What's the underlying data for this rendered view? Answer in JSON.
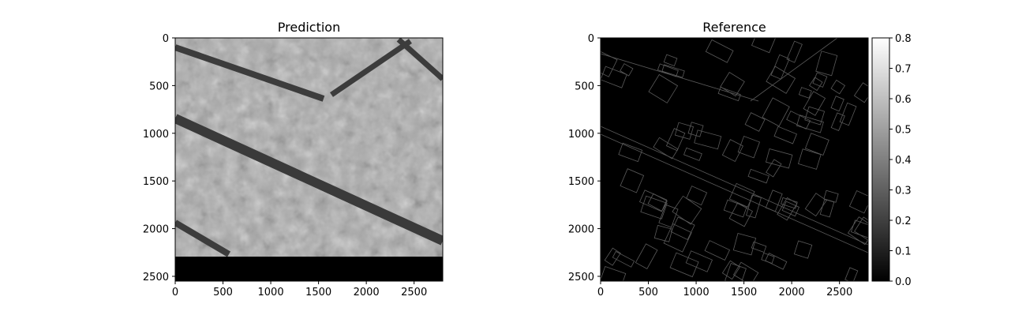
{
  "chart_data": [
    {
      "type": "heatmap",
      "title": "Prediction",
      "xlim": [
        0,
        2800
      ],
      "ylim": [
        2550,
        0
      ],
      "xticks": [
        0,
        500,
        1000,
        1500,
        2000,
        2500
      ],
      "yticks": [
        0,
        500,
        1000,
        1500,
        2000,
        2500
      ],
      "xtick_labels": [
        "0",
        "500",
        "1000",
        "1500",
        "2000",
        "2500"
      ],
      "ytick_labels": [
        "0",
        "500",
        "1000",
        "1500",
        "2000",
        "2500"
      ],
      "colormap": "gray",
      "valid_rows": [
        0,
        2300
      ],
      "masked_region_value": 0.0,
      "image_content": "grayscale aerial image prediction with diagonal dark roads"
    },
    {
      "type": "heatmap",
      "title": "Reference",
      "xlim": [
        0,
        2800
      ],
      "ylim": [
        2550,
        0
      ],
      "xticks": [
        0,
        500,
        1000,
        1500,
        2000,
        2500
      ],
      "yticks": [
        0,
        500,
        1000,
        1500,
        2000,
        2500
      ],
      "xtick_labels": [
        "0",
        "500",
        "1000",
        "1500",
        "2000",
        "2500"
      ],
      "ytick_labels": [
        "0",
        "500",
        "1000",
        "1500",
        "2000",
        "2500"
      ],
      "colormap": "gray",
      "image_content": "thin light outlines of building and road edges on black background",
      "colorbar": {
        "min": 0.0,
        "max": 0.8,
        "ticks": [
          0.0,
          0.1,
          0.2,
          0.3,
          0.4,
          0.5,
          0.6,
          0.7,
          0.8
        ],
        "tick_labels": [
          "0.0",
          "0.1",
          "0.2",
          "0.3",
          "0.4",
          "0.5",
          "0.6",
          "0.7",
          "0.8"
        ]
      }
    }
  ]
}
